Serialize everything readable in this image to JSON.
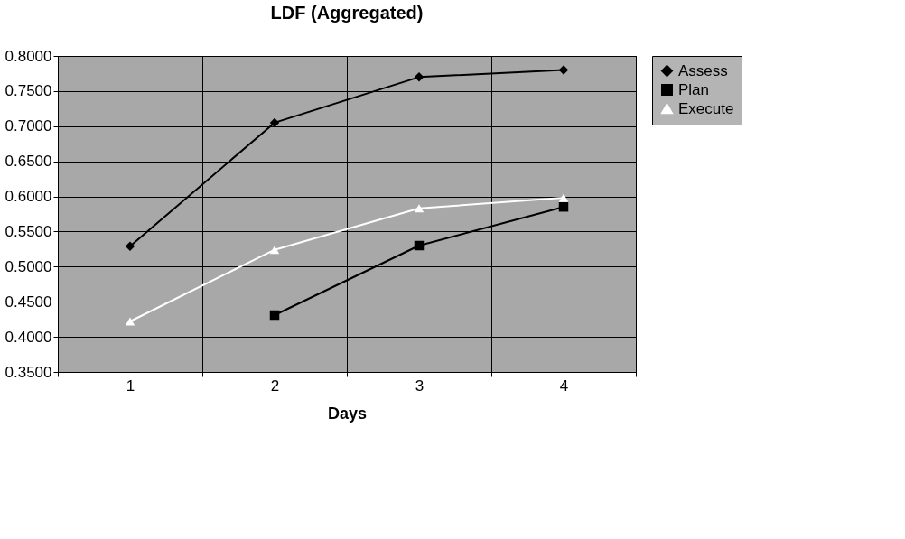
{
  "chart_data": {
    "type": "line",
    "title": "LDF (Aggregated)",
    "xlabel": "Days",
    "categories": [
      "1",
      "2",
      "3",
      "4"
    ],
    "series": [
      {
        "name": "Assess",
        "color": "#000000",
        "marker": "diamond",
        "values": [
          0.529,
          0.705,
          0.77,
          0.78
        ]
      },
      {
        "name": "Plan",
        "color": "#000000",
        "marker": "square",
        "values": [
          null,
          0.431,
          0.53,
          0.585
        ]
      },
      {
        "name": "Execute",
        "color": "#ffffff",
        "marker": "triangle",
        "values": [
          0.422,
          0.524,
          0.583,
          0.598
        ]
      }
    ],
    "ylim": [
      0.35,
      0.8
    ],
    "yticks": [
      {
        "value": 0.35,
        "label": "0.3500"
      },
      {
        "value": 0.4,
        "label": "0.4000"
      },
      {
        "value": 0.45,
        "label": "0.4500"
      },
      {
        "value": 0.5,
        "label": "0.5000"
      },
      {
        "value": 0.55,
        "label": "0.5500"
      },
      {
        "value": 0.6,
        "label": "0.6000"
      },
      {
        "value": 0.65,
        "label": "0.6500"
      },
      {
        "value": 0.7,
        "label": "0.7000"
      },
      {
        "value": 0.75,
        "label": "0.7500"
      },
      {
        "value": 0.8,
        "label": "0.8000"
      }
    ],
    "grid": true,
    "legend": "right",
    "line_style": "solid"
  }
}
